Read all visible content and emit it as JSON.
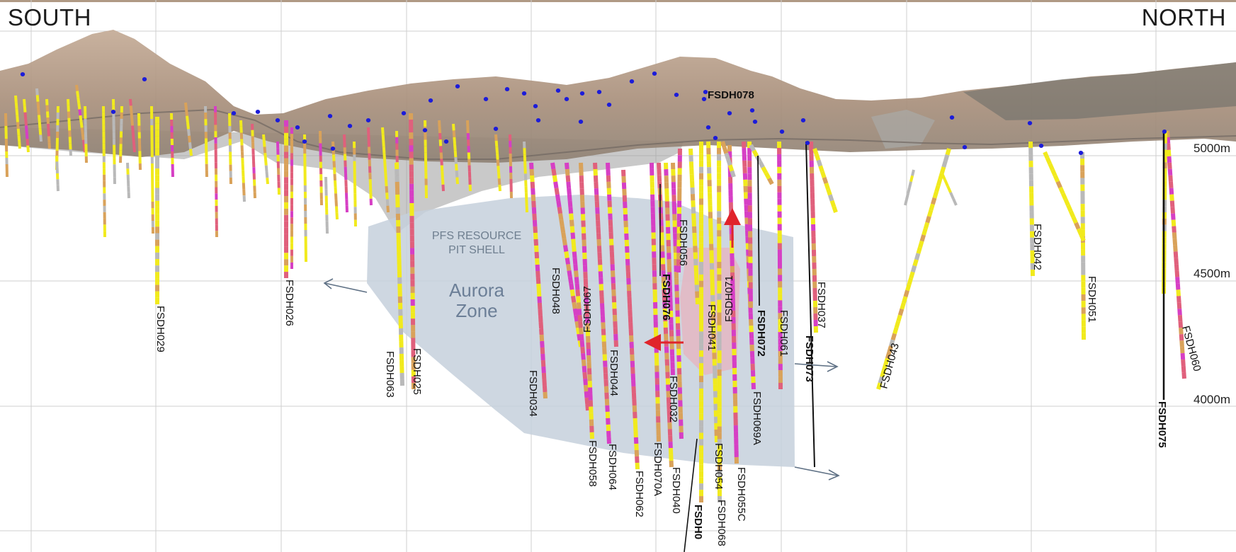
{
  "header": {
    "south": "SOUTH",
    "north": "NORTH"
  },
  "elevations": [
    "5000m",
    "4500m",
    "4000m"
  ],
  "zones": {
    "pit_shell_line1": "PFS RESOURCE",
    "pit_shell_line2": "PIT SHELL",
    "aurora_line1": "Aurora",
    "aurora_line2": "Zone"
  },
  "colors": {
    "grid": "#c9c9c9",
    "terrain": "#b8a08a",
    "aurora_zone": "#c5d0dc",
    "target_zone": "#e9b9c2",
    "collar": "#1c1cd9",
    "arrow_red": "#e0242b",
    "arrow_slate": "#5f7185",
    "core_yellow": "#f1ea1d",
    "core_magenta": "#d63fc4",
    "core_pink": "#e0607c",
    "core_orange": "#d9a25a",
    "core_grey": "#b9b9b9"
  },
  "holes": {
    "FSDH029": "FSDH029",
    "FSDH026": "FSDH026",
    "FSDH063": "FSDH063",
    "FSDH025": "FSDH025",
    "FSDH034": "FSDH034",
    "FSDH048": "FSDH048",
    "FSDH067": "FSDH067",
    "FSDH058": "FSDH058",
    "FSDH064": "FSDH064",
    "FSDH044": "FSDH044",
    "FSDH062": "FSDH062",
    "FSDH070A": "FSDH070A",
    "FSDH040": "FSDH040",
    "FSDH032": "FSDH032",
    "FSDH076": "FSDH076",
    "FSDH056": "FSDH056",
    "FSDH041": "FSDH041",
    "FSDH071": "FSDH071",
    "FSDH054": "FSDH054",
    "FSDH068": "FSDH068",
    "FSDH055C": "FSDH055C",
    "FSDH069A": "FSDH069A",
    "FSDH072": "FSDH072",
    "FSDH061": "FSDH061",
    "FSDH037": "FSDH037",
    "FSDH073": "FSDH073",
    "FSDH078": "FSDH078",
    "FSDH043": "FSDH043",
    "FSDH042": "FSDH042",
    "FSDH051": "FSDH051",
    "FSDH060": "FSDH060",
    "FSDH075": "FSDH075",
    "FSDH_partial": "FSDH0"
  }
}
